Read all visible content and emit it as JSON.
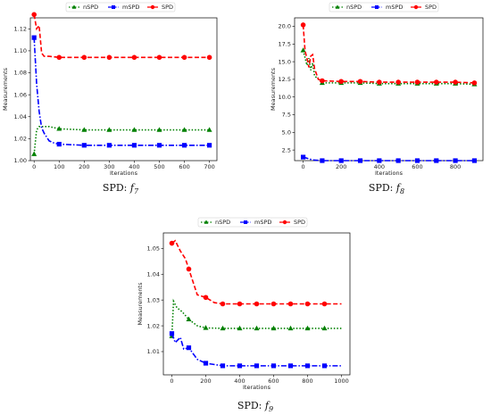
{
  "chart_data": [
    {
      "type": "line",
      "caption_prefix": "SPD: ",
      "caption_func": "f",
      "caption_sub": "7",
      "xlabel": "Iterations",
      "ylabel": "Measurements",
      "xlim": [
        -15,
        730
      ],
      "ylim": [
        1.0,
        1.13
      ],
      "xticks": [
        "0",
        "100",
        "200",
        "300",
        "400",
        "500",
        "600",
        "700"
      ],
      "xtick_values": [
        0,
        100,
        200,
        300,
        400,
        500,
        600,
        700
      ],
      "yticks": [
        "1.00",
        "1.02",
        "1.04",
        "1.06",
        "1.08",
        "1.10",
        "1.12"
      ],
      "ytick_values": [
        1.0,
        1.02,
        1.04,
        1.06,
        1.08,
        1.1,
        1.12
      ],
      "legend": "top-center",
      "series": [
        {
          "name": "nSPD",
          "color": "#008000",
          "dash": "1.5,2",
          "marker": "triangle",
          "x": [
            0,
            10,
            20,
            40,
            60,
            100,
            200,
            300,
            400,
            500,
            600,
            700
          ],
          "y": [
            1.006,
            1.028,
            1.031,
            1.031,
            1.031,
            1.029,
            1.028,
            1.028,
            1.028,
            1.028,
            1.028,
            1.028
          ],
          "marker_x": [
            0,
            100,
            200,
            300,
            400,
            500,
            600,
            700
          ]
        },
        {
          "name": "mSPD",
          "color": "#0000ff",
          "dash": "6,2,1.5,2",
          "marker": "square",
          "x": [
            0,
            10,
            20,
            30,
            40,
            60,
            80,
            100,
            200,
            300,
            400,
            500,
            600,
            700
          ],
          "y": [
            1.112,
            1.07,
            1.045,
            1.03,
            1.025,
            1.018,
            1.016,
            1.015,
            1.014,
            1.014,
            1.014,
            1.014,
            1.014,
            1.014
          ],
          "marker_x": [
            0,
            100,
            200,
            300,
            400,
            500,
            600,
            700
          ]
        },
        {
          "name": "SPD",
          "color": "#ff0000",
          "dash": "5,2.5",
          "marker": "circle",
          "x": [
            0,
            10,
            20,
            30,
            40,
            60,
            100,
            200,
            300,
            400,
            500,
            600,
            700
          ],
          "y": [
            1.133,
            1.12,
            1.123,
            1.098,
            1.095,
            1.095,
            1.094,
            1.094,
            1.094,
            1.094,
            1.094,
            1.094,
            1.094
          ],
          "marker_x": [
            0,
            100,
            200,
            300,
            400,
            500,
            600,
            700
          ]
        }
      ]
    },
    {
      "type": "line",
      "caption_prefix": "SPD: ",
      "caption_func": "f",
      "caption_sub": "8",
      "xlabel": "Iterations",
      "ylabel": "Measurements",
      "xlim": [
        -45,
        945
      ],
      "ylim": [
        1.0,
        21.2
      ],
      "xticks": [
        "0",
        "200",
        "400",
        "600",
        "800"
      ],
      "xtick_values": [
        0,
        200,
        400,
        600,
        800
      ],
      "yticks": [
        "2.5",
        "5.0",
        "7.5",
        "10.0",
        "12.5",
        "15.0",
        "17.5",
        "20.0"
      ],
      "ytick_values": [
        2.5,
        5.0,
        7.5,
        10.0,
        12.5,
        15.0,
        17.5,
        20.0
      ],
      "legend": "top-center",
      "series": [
        {
          "name": "nSPD",
          "color": "#008000",
          "dash": "1.5,2",
          "marker": "triangle",
          "x": [
            0,
            20,
            30,
            40,
            50,
            60,
            100,
            200,
            300,
            400,
            500,
            600,
            700,
            800,
            900
          ],
          "y": [
            16.6,
            14.5,
            15.5,
            13.8,
            14.8,
            13.0,
            12.0,
            12.0,
            12.0,
            11.9,
            11.9,
            11.9,
            11.9,
            11.9,
            11.8
          ],
          "marker_x": [
            0,
            100,
            200,
            300,
            400,
            500,
            600,
            700,
            800,
            900
          ]
        },
        {
          "name": "mSPD",
          "color": "#0000ff",
          "dash": "6,2,1.5,2",
          "marker": "square",
          "x": [
            0,
            50,
            100,
            200,
            300,
            400,
            500,
            600,
            700,
            800,
            900
          ],
          "y": [
            1.5,
            1.1,
            1.0,
            1.0,
            1.0,
            1.0,
            1.0,
            1.0,
            1.0,
            1.0,
            1.0
          ],
          "marker_x": [
            0,
            100,
            200,
            300,
            400,
            500,
            600,
            700,
            800,
            900
          ]
        },
        {
          "name": "SPD",
          "color": "#ff0000",
          "dash": "5,2.5",
          "marker": "circle",
          "x": [
            0,
            10,
            20,
            30,
            40,
            50,
            60,
            80,
            100,
            200,
            300,
            400,
            500,
            600,
            700,
            800,
            900
          ],
          "y": [
            20.2,
            16.5,
            15.5,
            14.2,
            15.8,
            16.0,
            14.0,
            12.5,
            12.3,
            12.2,
            12.2,
            12.1,
            12.1,
            12.1,
            12.1,
            12.1,
            12.0
          ],
          "marker_x": [
            0,
            100,
            200,
            300,
            400,
            500,
            600,
            700,
            800,
            900
          ]
        }
      ]
    },
    {
      "type": "line",
      "caption_prefix": "SPD: ",
      "caption_func": "f",
      "caption_sub": "9",
      "xlabel": "Iterations",
      "ylabel": "Measurements",
      "xlim": [
        -50,
        1050
      ],
      "ylim": [
        1.001,
        1.056
      ],
      "xticks": [
        "0",
        "200",
        "400",
        "600",
        "800",
        "1000"
      ],
      "xtick_values": [
        0,
        200,
        400,
        600,
        800,
        1000
      ],
      "yticks": [
        "1.01",
        "1.02",
        "1.03",
        "1.04",
        "1.05"
      ],
      "ytick_values": [
        1.01,
        1.02,
        1.03,
        1.04,
        1.05
      ],
      "legend": "top-center",
      "series": [
        {
          "name": "nSPD",
          "color": "#008000",
          "dash": "1.5,2",
          "marker": "triangle",
          "x": [
            0,
            10,
            30,
            60,
            100,
            150,
            200,
            300,
            400,
            500,
            600,
            700,
            800,
            900,
            1000
          ],
          "y": [
            1.016,
            1.0295,
            1.027,
            1.0255,
            1.0225,
            1.02,
            1.0192,
            1.019,
            1.019,
            1.019,
            1.019,
            1.019,
            1.019,
            1.019,
            1.019
          ],
          "marker_x": [
            0,
            100,
            200,
            300,
            400,
            500,
            600,
            700,
            800,
            900
          ]
        },
        {
          "name": "mSPD",
          "color": "#0000ff",
          "dash": "6,2,1.5,2",
          "marker": "square",
          "x": [
            0,
            20,
            50,
            70,
            100,
            150,
            200,
            300,
            400,
            500,
            600,
            700,
            800,
            900,
            1000
          ],
          "y": [
            1.017,
            1.0135,
            1.0155,
            1.011,
            1.0115,
            1.007,
            1.0055,
            1.0045,
            1.0045,
            1.0045,
            1.0045,
            1.0045,
            1.0045,
            1.0045,
            1.0045
          ],
          "marker_x": [
            0,
            100,
            200,
            300,
            400,
            500,
            600,
            700,
            800,
            900
          ]
        },
        {
          "name": "SPD",
          "color": "#ff0000",
          "dash": "5,2.5",
          "marker": "circle",
          "x": [
            0,
            20,
            50,
            80,
            100,
            150,
            200,
            250,
            300,
            400,
            500,
            600,
            700,
            800,
            900,
            1000
          ],
          "y": [
            1.052,
            1.053,
            1.049,
            1.046,
            1.042,
            1.032,
            1.031,
            1.029,
            1.0285,
            1.0285,
            1.0285,
            1.0285,
            1.0285,
            1.0285,
            1.0285,
            1.0285
          ],
          "marker_x": [
            0,
            100,
            200,
            300,
            400,
            500,
            600,
            700,
            800,
            900
          ]
        }
      ]
    }
  ]
}
